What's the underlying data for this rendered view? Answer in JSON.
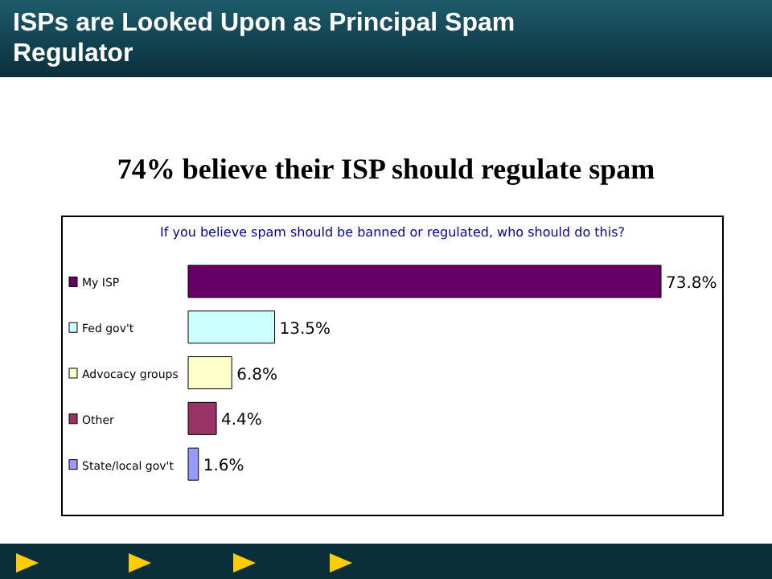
{
  "chart_data": {
    "type": "bar",
    "orientation": "horizontal",
    "title": "ISPs are Looked Upon as Principal Spam Regulator",
    "subtitle": "74% believe their ISP should regulate spam",
    "annotations": [
      "If you believe spam should be banned or regulated, who should do this?"
    ],
    "categories": [
      "My ISP",
      "Fed gov't",
      "Advocacy groups",
      "Other",
      "State/local gov't"
    ],
    "values": [
      73.8,
      13.5,
      6.8,
      4.4,
      1.6
    ],
    "colors": [
      "#660066",
      "#ccffff",
      "#ffffcc",
      "#993366",
      "#9999ff"
    ],
    "value_labels": [
      "73.8%",
      "13.5%",
      "6.8%",
      "4.4%",
      "1.6%"
    ]
  }
}
